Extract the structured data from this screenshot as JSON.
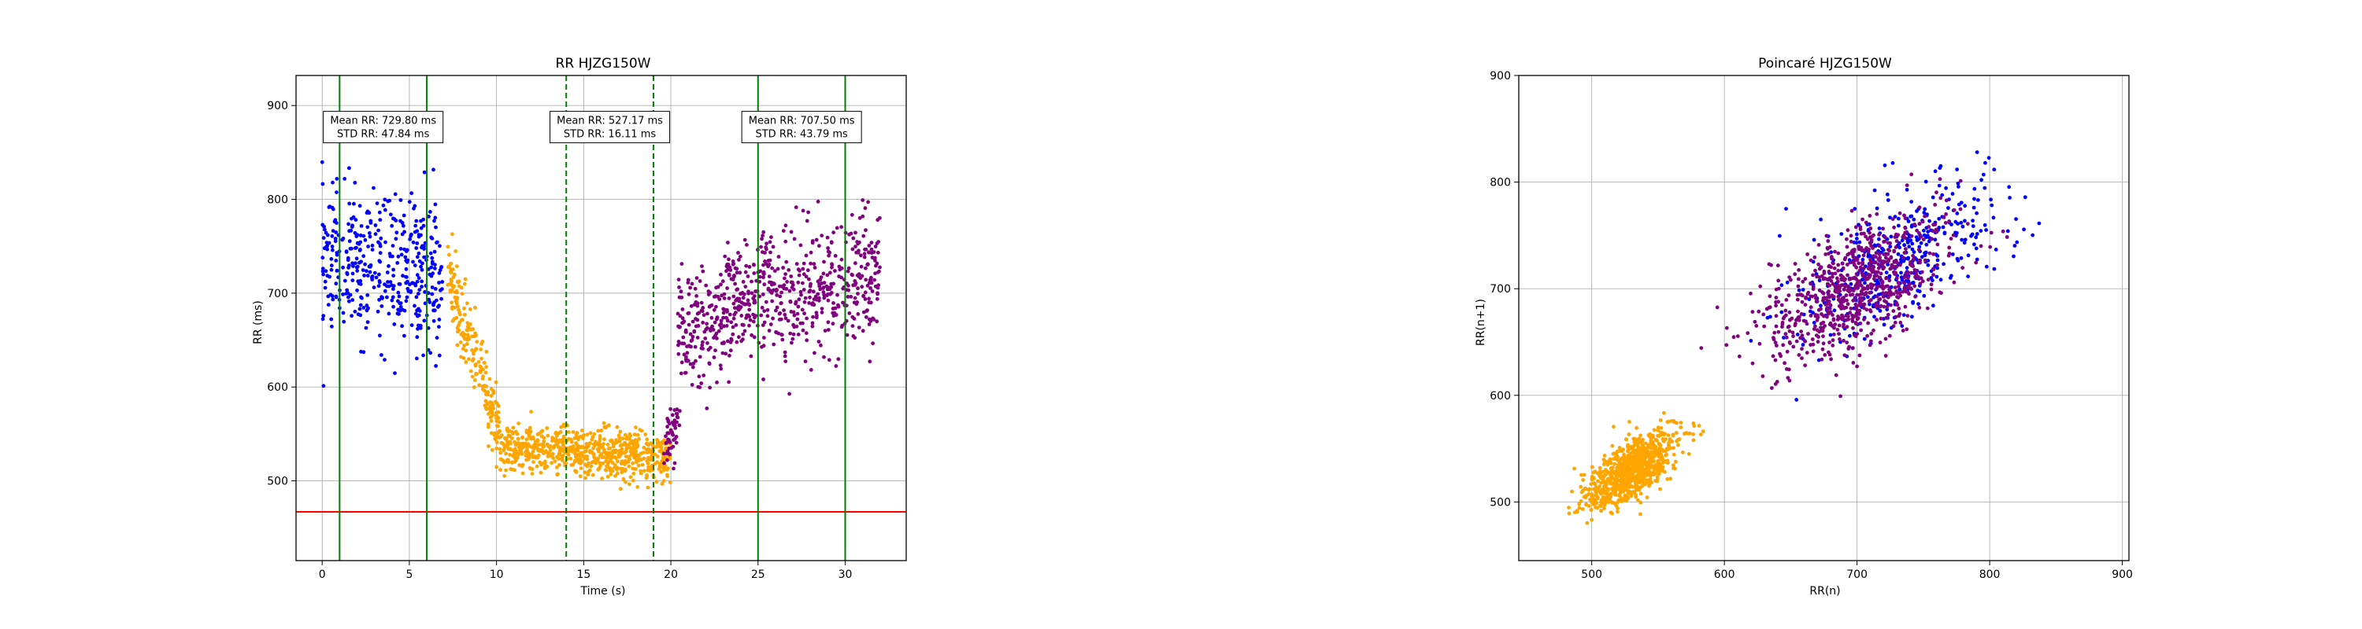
{
  "chart_data": [
    {
      "type": "scatter",
      "title": "RR HJZG150W",
      "xlabel": "Time (s)",
      "ylabel": "RR (ms)",
      "xlim": [
        -1.5,
        33.5
      ],
      "ylim": [
        415,
        932
      ],
      "xticks": [
        0,
        5,
        10,
        15,
        20,
        25,
        30
      ],
      "yticks": [
        500,
        600,
        700,
        800,
        900
      ],
      "grid": true,
      "series": [
        {
          "color": "#0000ff",
          "approx_points": 420,
          "segments": [
            {
              "x0": 0.0,
              "x1": 6.9,
              "y0": 735,
              "y1": 720,
              "spread": 48
            }
          ]
        },
        {
          "color": "#ffa500",
          "approx_points": 900,
          "segments": [
            {
              "x0": 7.2,
              "x1": 8.6,
              "y0": 720,
              "y1": 640,
              "spread": 30
            },
            {
              "x0": 8.6,
              "x1": 10.2,
              "y0": 640,
              "y1": 550,
              "spread": 22
            },
            {
              "x0": 10.2,
              "x1": 20.0,
              "y0": 535,
              "y1": 525,
              "spread": 16
            }
          ]
        },
        {
          "color": "#800080",
          "approx_points": 760,
          "segments": [
            {
              "x0": 19.6,
              "x1": 20.4,
              "y0": 530,
              "y1": 560,
              "spread": 18
            },
            {
              "x0": 20.4,
              "x1": 23.0,
              "y0": 660,
              "y1": 670,
              "spread": 38
            },
            {
              "x0": 23.0,
              "x1": 32.0,
              "y0": 690,
              "y1": 710,
              "spread": 44
            }
          ]
        }
      ],
      "reference_lines": [
        {
          "orientation": "horizontal",
          "value": 467,
          "color": "#ff0000",
          "style": "solid"
        },
        {
          "orientation": "vertical",
          "value": 1,
          "color": "#008000",
          "style": "solid"
        },
        {
          "orientation": "vertical",
          "value": 6,
          "color": "#008000",
          "style": "solid"
        },
        {
          "orientation": "vertical",
          "value": 14,
          "color": "#008000",
          "style": "dashed"
        },
        {
          "orientation": "vertical",
          "value": 19,
          "color": "#008000",
          "style": "dashed"
        },
        {
          "orientation": "vertical",
          "value": 25,
          "color": "#008000",
          "style": "solid"
        },
        {
          "orientation": "vertical",
          "value": 30,
          "color": "#008000",
          "style": "solid"
        }
      ],
      "annotations": [
        {
          "x": 3.5,
          "y": 877,
          "lines": [
            "Mean RR: 729.80 ms",
            "STD RR: 47.84 ms"
          ]
        },
        {
          "x": 16.5,
          "y": 877,
          "lines": [
            "Mean RR: 527.17 ms",
            "STD RR: 16.11 ms"
          ]
        },
        {
          "x": 27.5,
          "y": 877,
          "lines": [
            "Mean RR: 707.50 ms",
            "STD RR: 43.79 ms"
          ]
        }
      ]
    },
    {
      "type": "scatter",
      "title": "Poincaré HJZG150W",
      "xlabel": "RR(n)",
      "ylabel": "RR(n+1)",
      "xlim": [
        445,
        905
      ],
      "ylim": [
        445,
        900
      ],
      "xticks": [
        500,
        600,
        700,
        800,
        900
      ],
      "yticks": [
        500,
        600,
        700,
        800,
        900
      ],
      "grid": true,
      "series": [
        {
          "color": "#0000ff",
          "approx_points": 420,
          "center": [
            730,
            730
          ],
          "spread_along": 48,
          "spread_across": 24
        },
        {
          "color": "#ffa500",
          "approx_points": 900,
          "center": [
            530,
            530
          ],
          "spread_along": 22,
          "spread_across": 10
        },
        {
          "color": "#800080",
          "approx_points": 760,
          "center": [
            700,
            700
          ],
          "spread_along": 42,
          "spread_across": 22
        }
      ]
    }
  ]
}
